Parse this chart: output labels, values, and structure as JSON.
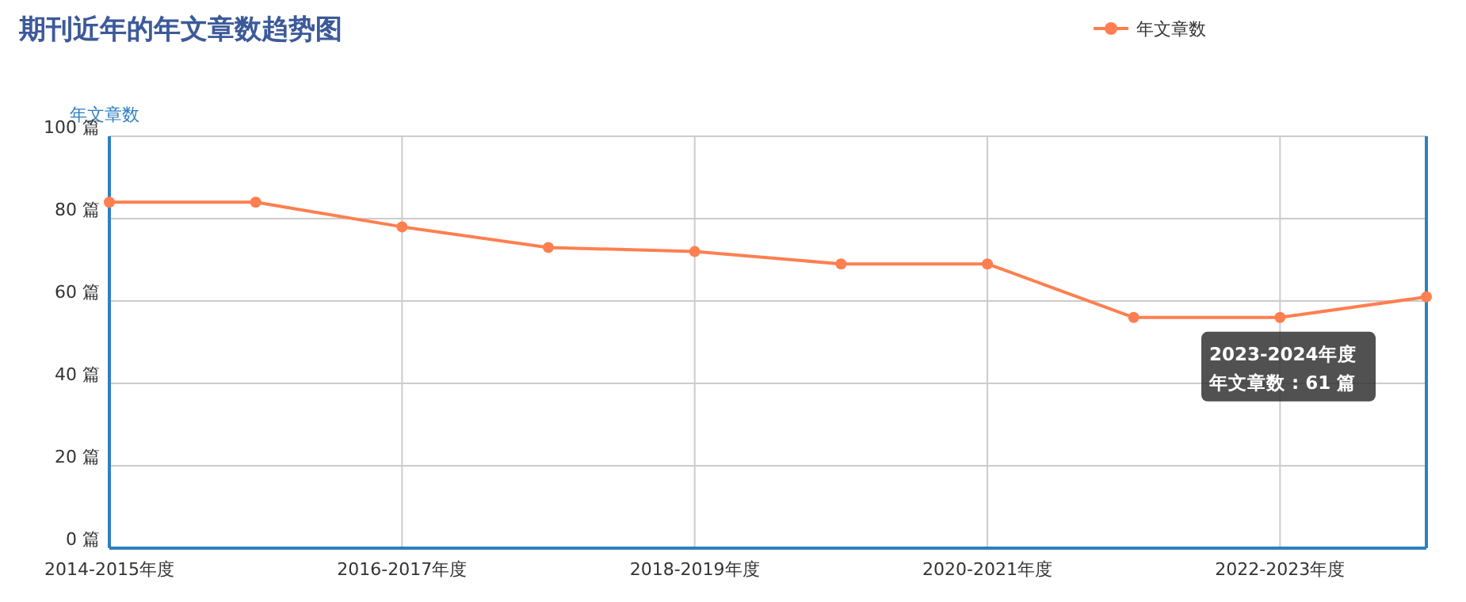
{
  "chart_data": {
    "type": "line",
    "title": "期刊近年的年文章数趋势图",
    "ylabel": "年文章数",
    "categories": [
      "2014-2015年度",
      null,
      "2016-2017年度",
      null,
      "2018-2019年度",
      null,
      "2020-2021年度",
      null,
      "2022-2023年度",
      null
    ],
    "series": [
      {
        "name": "年文章数",
        "color": "#ff7f50",
        "values": [
          84,
          84,
          78,
          73,
          72,
          69,
          69,
          56,
          56,
          61
        ]
      }
    ],
    "ylim": [
      0,
      100
    ],
    "yticks": [
      {
        "value": 0,
        "label": "0 篇"
      },
      {
        "value": 20,
        "label": "20 篇"
      },
      {
        "value": 40,
        "label": "40 篇"
      },
      {
        "value": 60,
        "label": "60 篇"
      },
      {
        "value": 80,
        "label": "80 篇"
      },
      {
        "value": 100,
        "label": "100 篇"
      }
    ],
    "grid": true,
    "legend": "top right",
    "marker": "circle",
    "line_style": "solid",
    "annotations": [
      "2023-2024年度",
      "年文章数 : 61 篇"
    ]
  }
}
